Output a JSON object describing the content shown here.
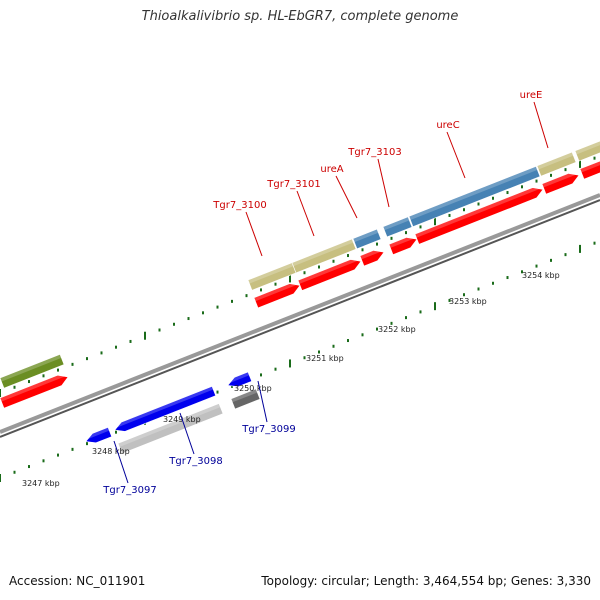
{
  "title": "Thioalkalivibrio sp. HL-EbGR7, complete genome",
  "footer": {
    "accession": "Accession: NC_011901",
    "summary": "Topology: circular; Length: 3,464,554 bp; Genes: 3,330"
  },
  "colors": {
    "forward_gene_label": "#cc0000",
    "reverse_gene_label": "#000099",
    "cds_red": "#ff0000",
    "gene_khaki": "#c7bf80",
    "gene_steelblue": "#4682b4",
    "gene_blue": "#0000ee",
    "gene_lightgray": "#c0c0c0",
    "gene_darkgray": "#666666",
    "gene_olive": "#6b8e23",
    "backbone": "#888888",
    "tick_green": "#006400"
  },
  "ticks": [
    "3247 kbp",
    "3248 kbp",
    "3249 kbp",
    "3250 kbp",
    "3251 kbp",
    "3252 kbp",
    "3253 kbp",
    "3254 kbp"
  ],
  "forward_labels": [
    "Tgr7_3100",
    "Tgr7_3101",
    "ureA",
    "Tgr7_3103",
    "ureC",
    "ureE"
  ],
  "reverse_labels": [
    "Tgr7_3097",
    "Tgr7_3098",
    "Tgr7_3099"
  ]
}
